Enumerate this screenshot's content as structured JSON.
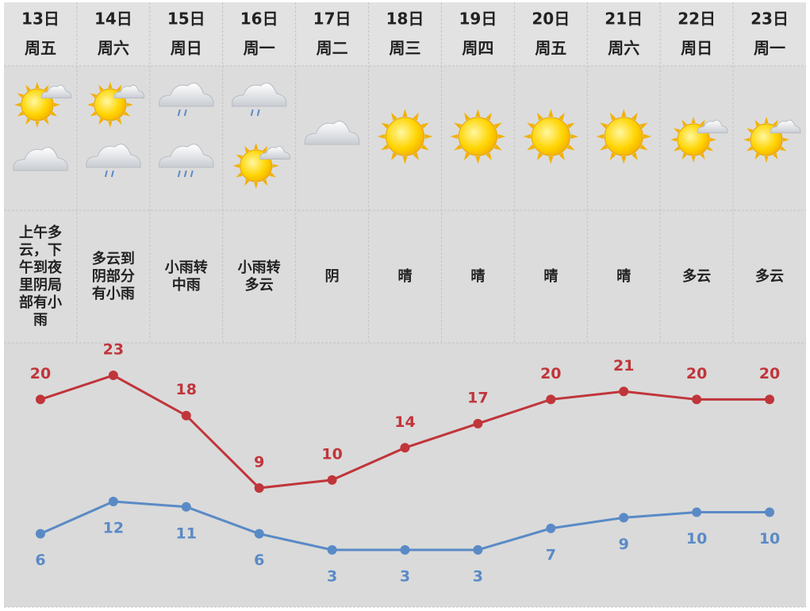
{
  "weekdays": [
    "周五",
    "周六",
    "周日",
    "周一",
    "周二",
    "周三",
    "周四",
    "周五",
    "周六",
    "周日",
    "周一"
  ],
  "conditions": [
    [
      "上午多",
      "云，下",
      "午到夜",
      "里阴局",
      "部有小",
      "雨"
    ],
    [
      "多云到",
      "阴部分",
      "有小雨"
    ],
    [
      "小雨转",
      "中雨"
    ],
    [
      "小雨转",
      "多云"
    ],
    [
      "阴"
    ],
    [
      "晴"
    ],
    [
      "晴"
    ],
    [
      "晴"
    ],
    [
      "晴"
    ],
    [
      "多云"
    ],
    [
      "多云"
    ]
  ],
  "chart_data": {
    "type": "line",
    "categories": [
      "13日",
      "14日",
      "15日",
      "16日",
      "17日",
      "18日",
      "19日",
      "20日",
      "21日",
      "22日",
      "23日"
    ],
    "series": [
      {
        "color": "#c0353a",
        "values": [
          20,
          23,
          18,
          9,
          10,
          14,
          17,
          20,
          21,
          20,
          20
        ]
      },
      {
        "color": "#5a8ac6",
        "values": [
          6,
          12,
          11,
          6,
          3,
          3,
          3,
          7,
          9,
          10,
          10
        ]
      }
    ]
  }
}
